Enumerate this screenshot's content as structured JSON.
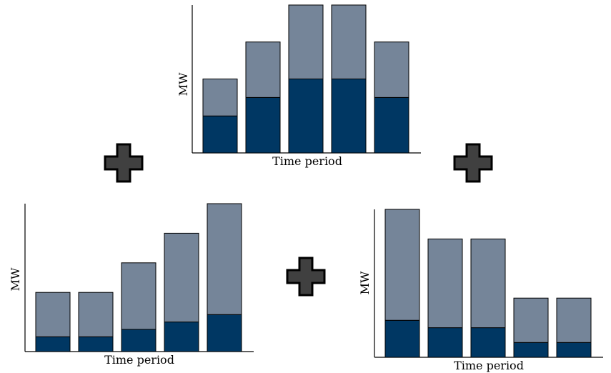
{
  "colors": {
    "base_segment": "#003763",
    "top_segment": "#758599",
    "bar_outline": "#000000",
    "plus_fill": "#404040",
    "plus_outline": "#000000"
  },
  "chart_data": [
    {
      "id": "top",
      "type": "bar",
      "stacked": true,
      "xlabel": "Time period",
      "ylabel": "MW",
      "ylim": [
        0,
        10
      ],
      "categories": [
        "",
        "",
        "",
        "",
        ""
      ],
      "series": [
        {
          "values": [
            2.5,
            3.75,
            5.0,
            5.0,
            3.75
          ]
        },
        {
          "values": [
            2.5,
            3.75,
            5.0,
            5.0,
            3.75
          ]
        }
      ],
      "grid": false,
      "legend": "none"
    },
    {
      "id": "bottom-left",
      "type": "bar",
      "stacked": true,
      "xlabel": "Time period",
      "ylabel": "MW",
      "ylim": [
        0,
        10
      ],
      "categories": [
        "",
        "",
        "",
        "",
        ""
      ],
      "series": [
        {
          "values": [
            1.0,
            1.0,
            1.5,
            2.0,
            2.5
          ]
        },
        {
          "values": [
            3.0,
            3.0,
            4.5,
            6.0,
            7.5
          ]
        }
      ],
      "grid": false,
      "legend": "none"
    },
    {
      "id": "bottom-right",
      "type": "bar",
      "stacked": true,
      "xlabel": "Time period",
      "ylabel": "MW",
      "ylim": [
        0,
        10
      ],
      "categories": [
        "",
        "",
        "",
        "",
        ""
      ],
      "series": [
        {
          "values": [
            2.5,
            2.0,
            2.0,
            1.0,
            1.0
          ]
        },
        {
          "values": [
            7.5,
            6.0,
            6.0,
            3.0,
            3.0
          ]
        }
      ],
      "grid": false,
      "legend": "none"
    }
  ],
  "operators": [
    "plus-left",
    "plus-middle",
    "plus-right"
  ]
}
